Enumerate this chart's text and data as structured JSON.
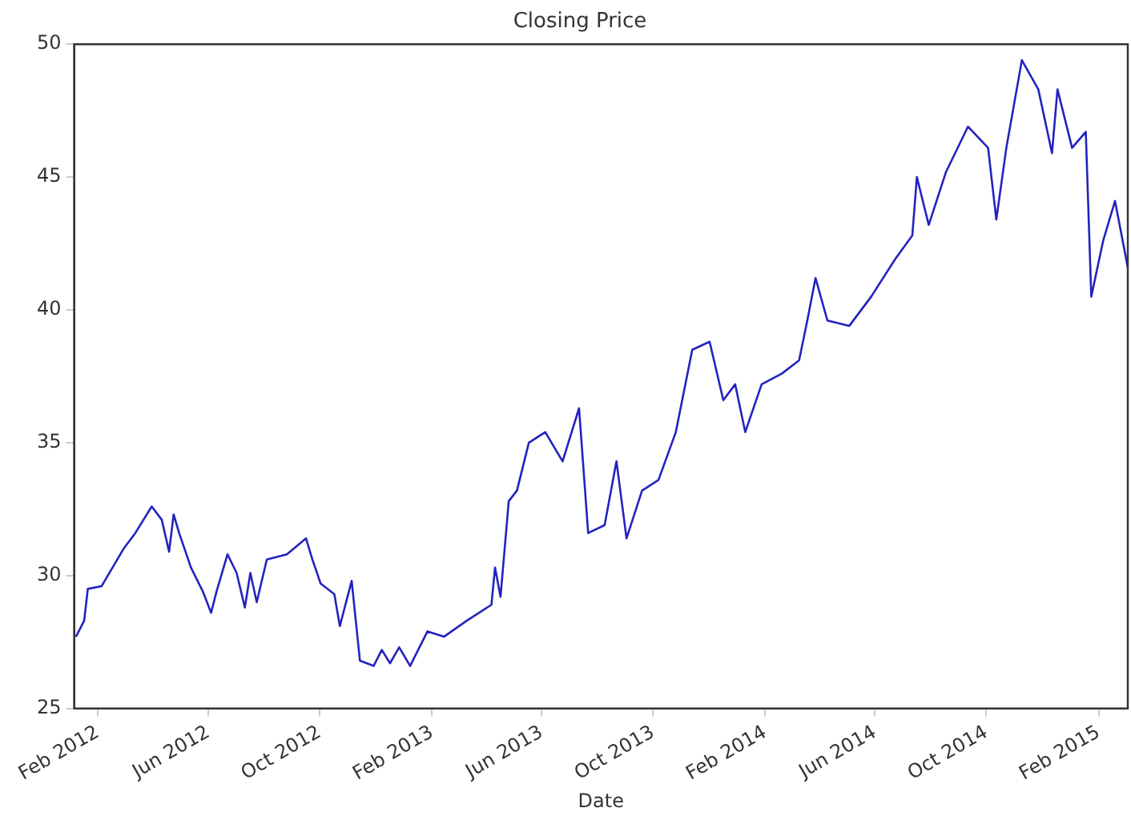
{
  "chart_data": {
    "type": "line",
    "title": "Closing Price",
    "xlabel": "Date",
    "x": [
      "2012-01-08",
      "2012-01-17",
      "2012-01-21",
      "2012-02-05",
      "2012-02-29",
      "2012-03-13",
      "2012-03-31",
      "2012-04-11",
      "2012-04-19",
      "2012-04-24",
      "2012-04-30",
      "2012-05-13",
      "2012-05-26",
      "2012-06-04",
      "2012-06-10",
      "2012-06-22",
      "2012-07-02",
      "2012-07-11",
      "2012-07-17",
      "2012-07-24",
      "2012-08-04",
      "2012-08-26",
      "2012-09-16",
      "2012-09-23",
      "2012-10-02",
      "2012-10-17",
      "2012-10-23",
      "2012-11-05",
      "2012-11-14",
      "2012-11-29",
      "2012-12-08",
      "2012-12-17",
      "2012-12-27",
      "2013-01-08",
      "2013-01-27",
      "2013-02-14",
      "2013-03-11",
      "2013-04-07",
      "2013-04-11",
      "2013-04-17",
      "2013-04-26",
      "2013-05-05",
      "2013-05-18",
      "2013-06-05",
      "2013-06-24",
      "2013-07-12",
      "2013-07-22",
      "2013-08-09",
      "2013-08-22",
      "2013-09-02",
      "2013-09-19",
      "2013-10-07",
      "2013-10-26",
      "2013-11-13",
      "2013-12-02",
      "2013-12-17",
      "2013-12-30",
      "2014-01-10",
      "2014-01-28",
      "2014-02-19",
      "2014-03-10",
      "2014-03-19",
      "2014-03-28",
      "2014-04-10",
      "2014-05-04",
      "2014-05-28",
      "2014-06-23",
      "2014-07-12",
      "2014-07-17",
      "2014-07-30",
      "2014-08-18",
      "2014-09-11",
      "2014-10-03",
      "2014-10-12",
      "2014-10-23",
      "2014-11-09",
      "2014-11-27",
      "2014-12-12",
      "2014-12-18",
      "2015-01-03",
      "2015-01-18",
      "2015-01-24",
      "2015-02-06",
      "2015-02-19",
      "2015-03-05"
    ],
    "series": [
      {
        "color": "#2323c0",
        "values": [
          27.7,
          28.3,
          29.5,
          29.6,
          31.0,
          31.6,
          32.6,
          32.1,
          30.9,
          32.3,
          31.6,
          30.3,
          29.4,
          28.6,
          29.4,
          30.8,
          30.1,
          28.8,
          30.1,
          29.0,
          30.6,
          30.8,
          31.4,
          30.6,
          29.7,
          29.3,
          28.1,
          29.8,
          26.8,
          26.6,
          27.2,
          26.7,
          27.3,
          26.6,
          27.9,
          27.7,
          28.3,
          28.9,
          30.3,
          29.2,
          32.8,
          33.2,
          35.0,
          35.4,
          34.3,
          36.3,
          31.6,
          31.9,
          34.3,
          31.4,
          33.2,
          33.6,
          35.4,
          38.5,
          38.8,
          36.6,
          37.2,
          35.4,
          37.2,
          37.6,
          38.1,
          39.6,
          41.2,
          39.6,
          39.4,
          40.5,
          41.9,
          42.8,
          45.0,
          43.2,
          45.2,
          46.9,
          46.1,
          43.4,
          46.1,
          49.4,
          48.3,
          45.9,
          48.3,
          46.1,
          46.7,
          40.5,
          42.6,
          44.1,
          41.6
        ]
      }
    ],
    "xlim": [
      "2012-01-06",
      "2015-03-05"
    ],
    "xticks": [
      {
        "value": "2012-02-01",
        "label": "Feb 2012"
      },
      {
        "value": "2012-06-01",
        "label": "Jun 2012"
      },
      {
        "value": "2012-10-01",
        "label": "Oct 2012"
      },
      {
        "value": "2013-02-01",
        "label": "Feb 2013"
      },
      {
        "value": "2013-06-01",
        "label": "Jun 2013"
      },
      {
        "value": "2013-10-01",
        "label": "Oct 2013"
      },
      {
        "value": "2014-02-01",
        "label": "Feb 2014"
      },
      {
        "value": "2014-06-01",
        "label": "Jun 2014"
      },
      {
        "value": "2014-10-01",
        "label": "Oct 2014"
      },
      {
        "value": "2015-02-01",
        "label": "Feb 2015"
      }
    ],
    "ylim": [
      25,
      50
    ],
    "yticks": [
      25,
      30,
      35,
      40,
      45,
      50
    ],
    "grid": false,
    "legend": false,
    "marker": "none",
    "line_style": "solid"
  }
}
